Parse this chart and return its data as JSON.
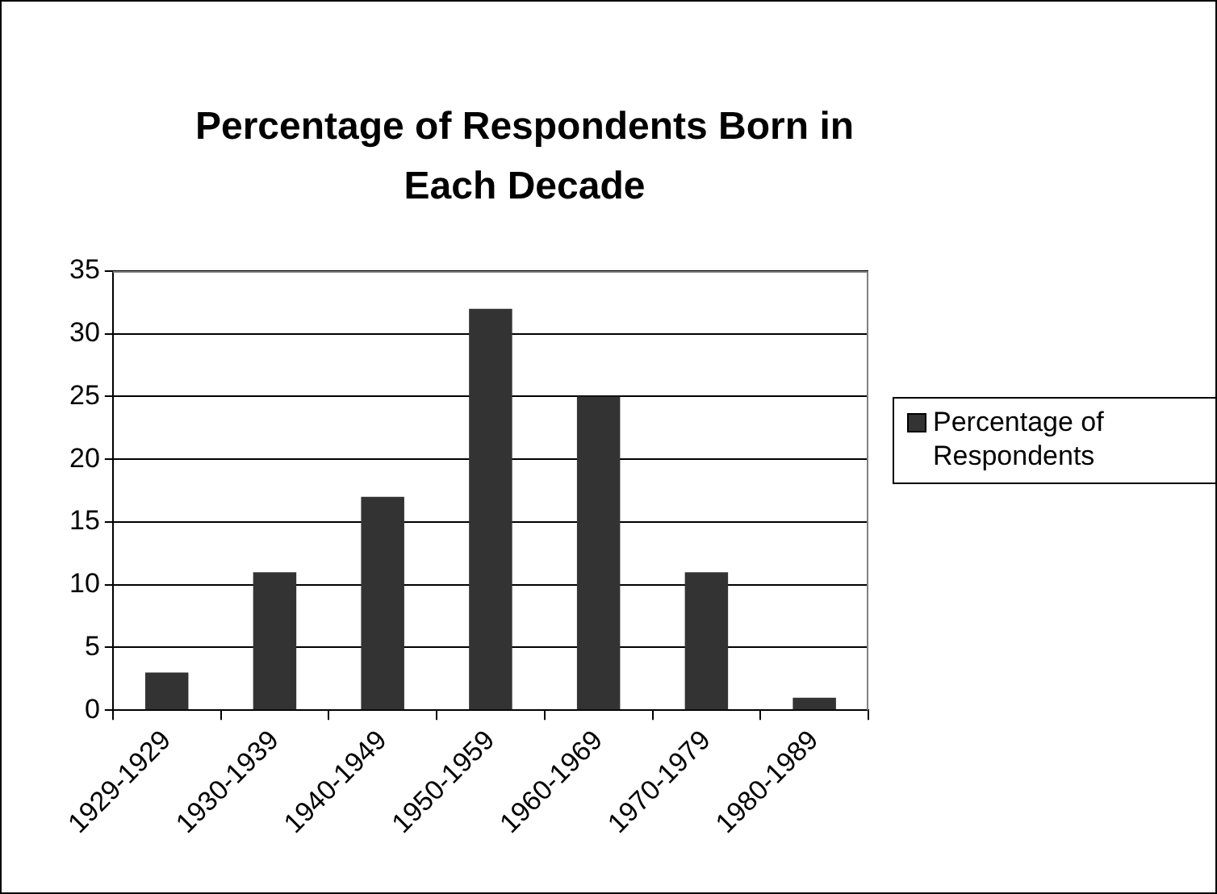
{
  "chart_data": {
    "type": "bar",
    "title": "Percentage of Respondents Born in Each Decade",
    "categories": [
      "1929-1929",
      "1930-1939",
      "1940-1949",
      "1950-1959",
      "1960-1969",
      "1970-1979",
      "1980-1989"
    ],
    "series": [
      {
        "name": "Percentage of Respondents",
        "color": "#333333",
        "values": [
          3,
          11,
          17,
          32,
          25,
          11,
          1
        ]
      }
    ],
    "ylim": [
      0,
      35
    ],
    "yticks": [
      0,
      5,
      10,
      15,
      20,
      25,
      30,
      35
    ],
    "grid": "y",
    "legend": "right"
  }
}
